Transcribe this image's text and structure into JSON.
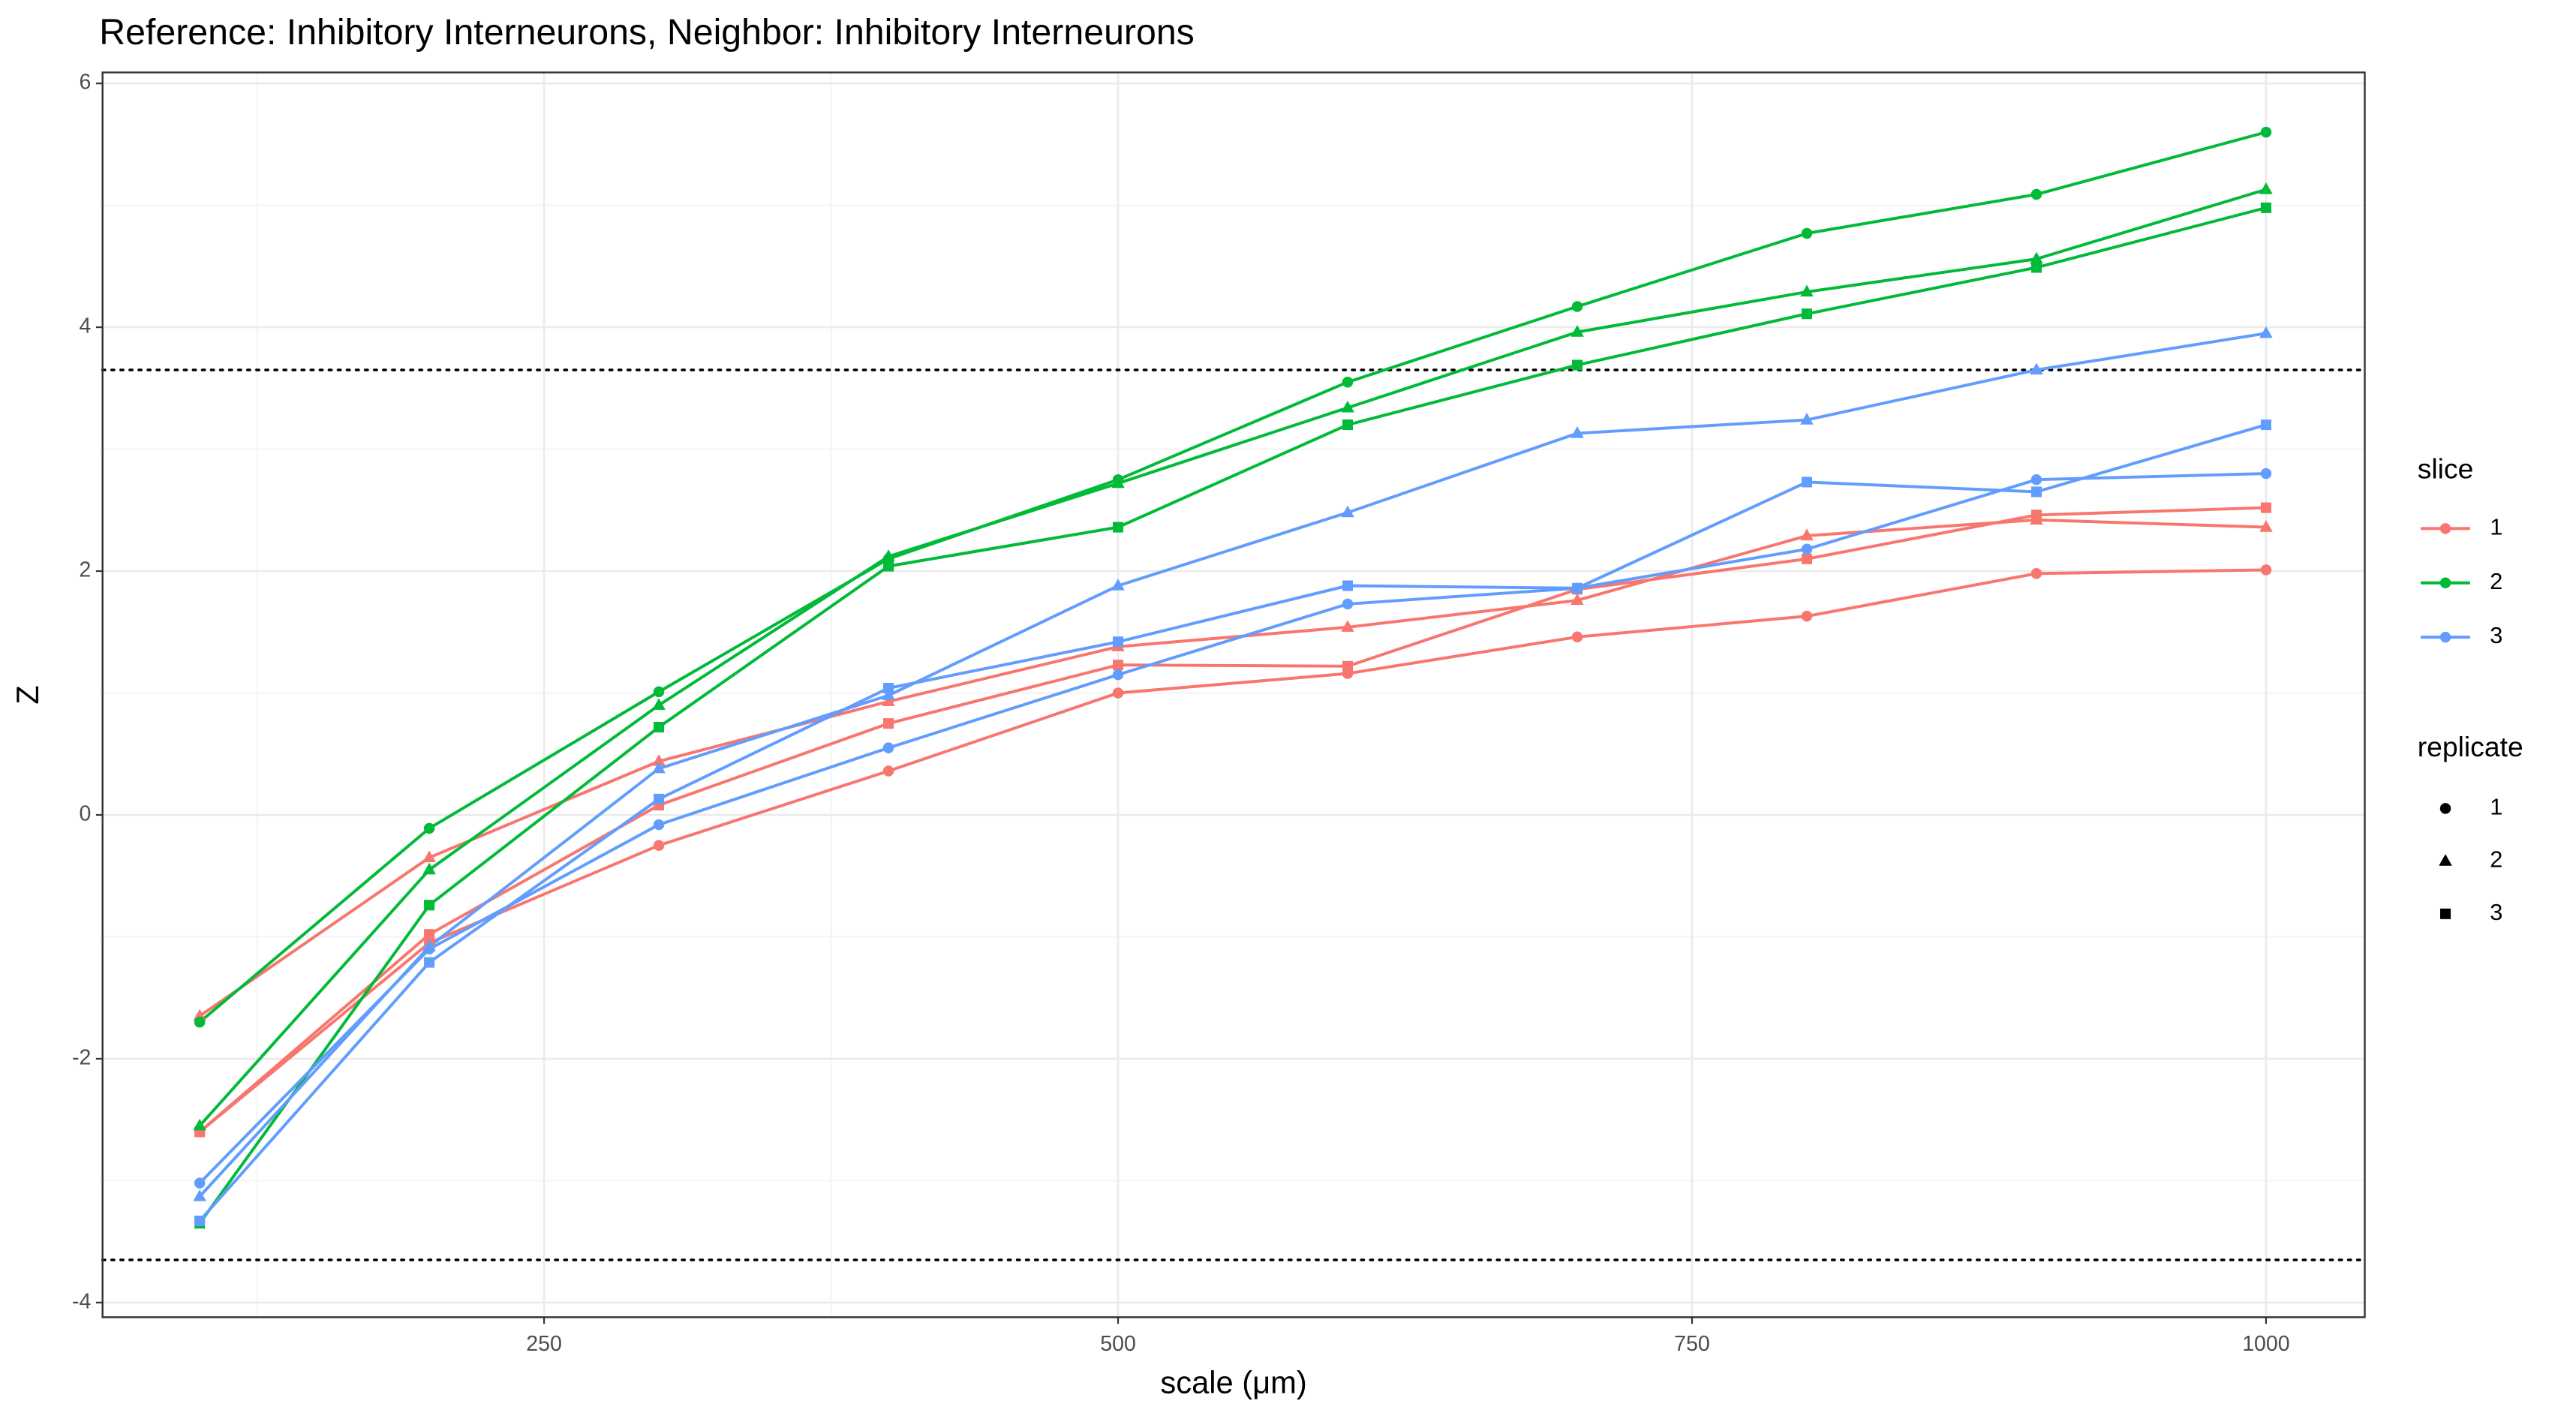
{
  "chart_data": {
    "type": "line",
    "title": "Reference: Inhibitory Interneurons, Neighbor: Inhibitory Interneurons",
    "x_label": "scale (μm)",
    "y_label": "Z",
    "x": [
      100,
      200,
      300,
      400,
      500,
      600,
      700,
      800,
      900,
      1000
    ],
    "xlim": [
      57.7,
      1043
    ],
    "ylim": [
      -4.12,
      6.09
    ],
    "xticks": [
      250,
      500,
      750,
      1000
    ],
    "yticks": [
      -4,
      -2,
      0,
      2,
      4,
      6
    ],
    "grid": true,
    "hlines": [
      3.65,
      -3.65
    ],
    "legend": {
      "position": "right",
      "color_title": "slice",
      "color_entries": [
        {
          "label": "1",
          "color": "#F8766D"
        },
        {
          "label": "2",
          "color": "#00BA38"
        },
        {
          "label": "3",
          "color": "#619CFF"
        }
      ],
      "shape_title": "replicate",
      "shape_entries": [
        {
          "label": "1",
          "shape": "circle"
        },
        {
          "label": "2",
          "shape": "triangle"
        },
        {
          "label": "3",
          "shape": "square"
        }
      ]
    },
    "series": [
      {
        "slice": "1",
        "replicate": "1",
        "color": "#F8766D",
        "shape": "circle",
        "values": [
          -2.6,
          -1.05,
          -0.25,
          0.36,
          1.0,
          1.16,
          1.46,
          1.63,
          1.98,
          2.01
        ]
      },
      {
        "slice": "1",
        "replicate": "2",
        "color": "#F8766D",
        "shape": "triangle",
        "values": [
          -1.65,
          -0.35,
          0.44,
          0.93,
          1.38,
          1.54,
          1.76,
          2.29,
          2.42,
          2.36
        ]
      },
      {
        "slice": "1",
        "replicate": "3",
        "color": "#F8766D",
        "shape": "square",
        "values": [
          -2.6,
          -0.98,
          0.08,
          0.75,
          1.23,
          1.22,
          1.85,
          2.1,
          2.46,
          2.52
        ]
      },
      {
        "slice": "2",
        "replicate": "1",
        "color": "#00BA38",
        "shape": "circle",
        "values": [
          -1.7,
          -0.11,
          1.01,
          2.1,
          2.75,
          3.55,
          4.17,
          4.77,
          5.09,
          5.6
        ]
      },
      {
        "slice": "2",
        "replicate": "2",
        "color": "#00BA38",
        "shape": "triangle",
        "values": [
          -2.55,
          -0.45,
          0.9,
          2.12,
          2.72,
          3.34,
          3.96,
          4.29,
          4.56,
          5.13
        ]
      },
      {
        "slice": "2",
        "replicate": "3",
        "color": "#00BA38",
        "shape": "square",
        "values": [
          -3.35,
          -0.74,
          0.72,
          2.04,
          2.36,
          3.2,
          3.69,
          4.11,
          4.49,
          4.98
        ]
      },
      {
        "slice": "3",
        "replicate": "1",
        "color": "#619CFF",
        "shape": "circle",
        "values": [
          -3.02,
          -1.1,
          -0.08,
          0.55,
          1.15,
          1.73,
          1.86,
          2.18,
          2.75,
          2.8
        ]
      },
      {
        "slice": "3",
        "replicate": "2",
        "color": "#619CFF",
        "shape": "triangle",
        "values": [
          -3.13,
          -1.08,
          0.38,
          0.98,
          1.88,
          2.48,
          3.13,
          3.24,
          3.65,
          3.95
        ]
      },
      {
        "slice": "3",
        "replicate": "3",
        "color": "#619CFF",
        "shape": "square",
        "values": [
          -3.33,
          -1.21,
          0.13,
          1.04,
          1.42,
          1.88,
          1.86,
          2.73,
          2.65,
          3.2
        ]
      }
    ]
  }
}
